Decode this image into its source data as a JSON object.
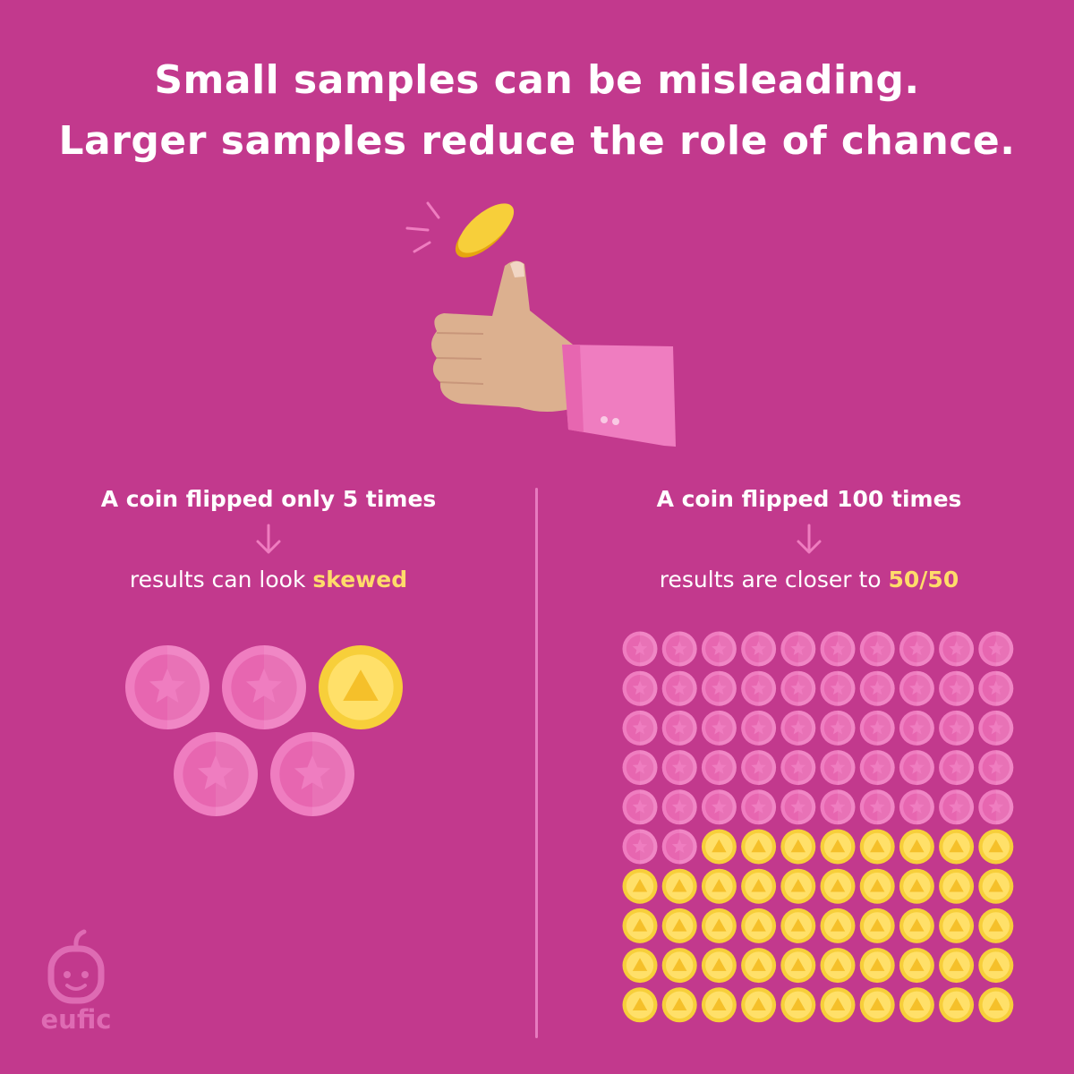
{
  "title": {
    "line1": "Small samples can be misleading.",
    "line2": "Larger samples reduce the role of chance."
  },
  "left": {
    "heading": "A coin flipped only 5 times",
    "result_prefix": "results can look ",
    "result_highlight": "skewed",
    "coins": [
      "star",
      "star",
      "triangle",
      "star",
      "star"
    ]
  },
  "right": {
    "heading": "A coin flipped 100 times",
    "result_prefix": "results are closer to ",
    "result_highlight": "50/50",
    "grid_rows": 10,
    "grid_cols": 10,
    "star_count": 52,
    "triangle_count": 48
  },
  "logo": {
    "text": "eufic"
  },
  "colors": {
    "background": "#c2398d",
    "coin_pink": "#ef7dc0",
    "coin_pink_face": "#e766b0",
    "coin_gold": "#f7cf3a",
    "coin_gold_face": "#ffe069",
    "highlight": "#ffdc6a"
  },
  "icons": [
    "coin-icon",
    "hand-thumb-icon",
    "arrow-down-icon",
    "star-coin-icon",
    "triangle-coin-icon",
    "eufic-logo-icon"
  ]
}
